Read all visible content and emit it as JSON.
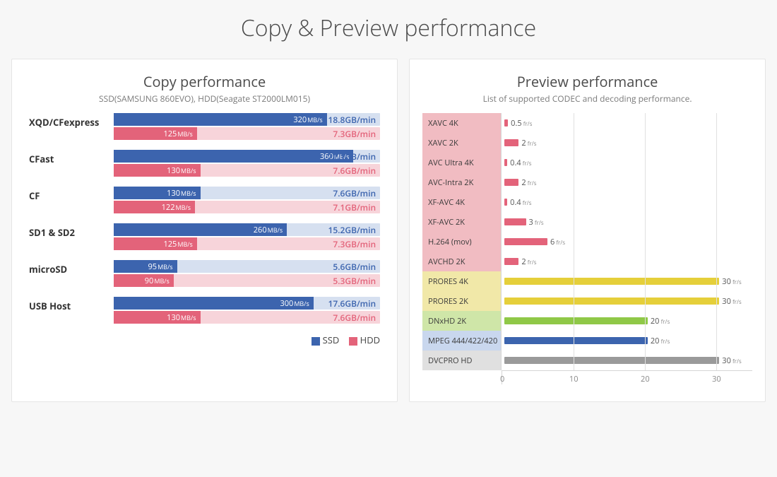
{
  "page_title": "Copy & Preview performance",
  "colors": {
    "page_bg": "#f7f7f7",
    "panel_bg": "#ffffff",
    "panel_border": "#e5e5e5",
    "ssd_fill": "#3c64ae",
    "ssd_track": "#d6e0f0",
    "ssd_text": "#3c64ae",
    "hdd_fill": "#e3637a",
    "hdd_track": "#f7d4da",
    "hdd_text": "#e3637a",
    "grid": "#e0e0e0"
  },
  "copy_panel": {
    "title": "Copy performance",
    "subtitle": "SSD(SAMSUNG 860EVO), HDD(Seagate ST2000LM015)",
    "speed_unit": "MB/s",
    "gb_unit": "GB/min",
    "max_speed": 400,
    "rows": [
      {
        "label": "XQD/CFexpress",
        "ssd_speed": 320,
        "ssd_gb": "18.8",
        "hdd_speed": 125,
        "hdd_gb": "7.3"
      },
      {
        "label": "CFast",
        "ssd_speed": 360,
        "ssd_gb": "21.1",
        "hdd_speed": 130,
        "hdd_gb": "7.6"
      },
      {
        "label": "CF",
        "ssd_speed": 130,
        "ssd_gb": "7.6",
        "hdd_speed": 122,
        "hdd_gb": "7.1"
      },
      {
        "label": "SD1 & SD2",
        "ssd_speed": 260,
        "ssd_gb": "15.2",
        "hdd_speed": 125,
        "hdd_gb": "7.3"
      },
      {
        "label": "microSD",
        "ssd_speed": 95,
        "ssd_gb": "5.6",
        "hdd_speed": 90,
        "hdd_gb": "5.3"
      },
      {
        "label": "USB Host",
        "ssd_speed": 300,
        "ssd_gb": "17.6",
        "hdd_speed": 130,
        "hdd_gb": "7.6"
      }
    ],
    "legend": {
      "ssd": "SSD",
      "hdd": "HDD"
    }
  },
  "preview_panel": {
    "title": "Preview performance",
    "subtitle": "List of supported CODEC and decoding performance.",
    "value_unit": "fr/s",
    "xmax": 35,
    "ticks": [
      0,
      10,
      20,
      30
    ],
    "rows": [
      {
        "label": "XAVC 4K",
        "value": 0.5,
        "label_bg": "#f1bcc2",
        "bar_color": "#e3637a"
      },
      {
        "label": "XAVC 2K",
        "value": 2,
        "label_bg": "#f1bcc2",
        "bar_color": "#e3637a"
      },
      {
        "label": "AVC Ultra 4K",
        "value": 0.4,
        "label_bg": "#f1bcc2",
        "bar_color": "#e3637a"
      },
      {
        "label": "AVC-Intra 2K",
        "value": 2,
        "label_bg": "#f1bcc2",
        "bar_color": "#e3637a"
      },
      {
        "label": "XF-AVC 4K",
        "value": 0.4,
        "label_bg": "#f1bcc2",
        "bar_color": "#e3637a"
      },
      {
        "label": "XF-AVC 2K",
        "value": 3,
        "label_bg": "#f1bcc2",
        "bar_color": "#e3637a"
      },
      {
        "label": "H.264 (mov)",
        "value": 6,
        "label_bg": "#f1bcc2",
        "bar_color": "#e3637a"
      },
      {
        "label": "AVCHD 2K",
        "value": 2,
        "label_bg": "#f1bcc2",
        "bar_color": "#e3637a"
      },
      {
        "label": "PRORES 4K",
        "value": 30,
        "label_bg": "#f1e8a8",
        "bar_color": "#e5cf3a"
      },
      {
        "label": "PRORES 2K",
        "value": 30,
        "label_bg": "#f1e8a8",
        "bar_color": "#e5cf3a"
      },
      {
        "label": "DNxHD 2K",
        "value": 20,
        "label_bg": "#cfe6a8",
        "bar_color": "#8fc847"
      },
      {
        "label": "MPEG 444/422/420",
        "value": 20,
        "label_bg": "#c9d7ee",
        "bar_color": "#3c64ae"
      },
      {
        "label": "DVCPRO HD",
        "value": 30,
        "label_bg": "#e0e0e0",
        "bar_color": "#9a9a9a"
      }
    ]
  }
}
